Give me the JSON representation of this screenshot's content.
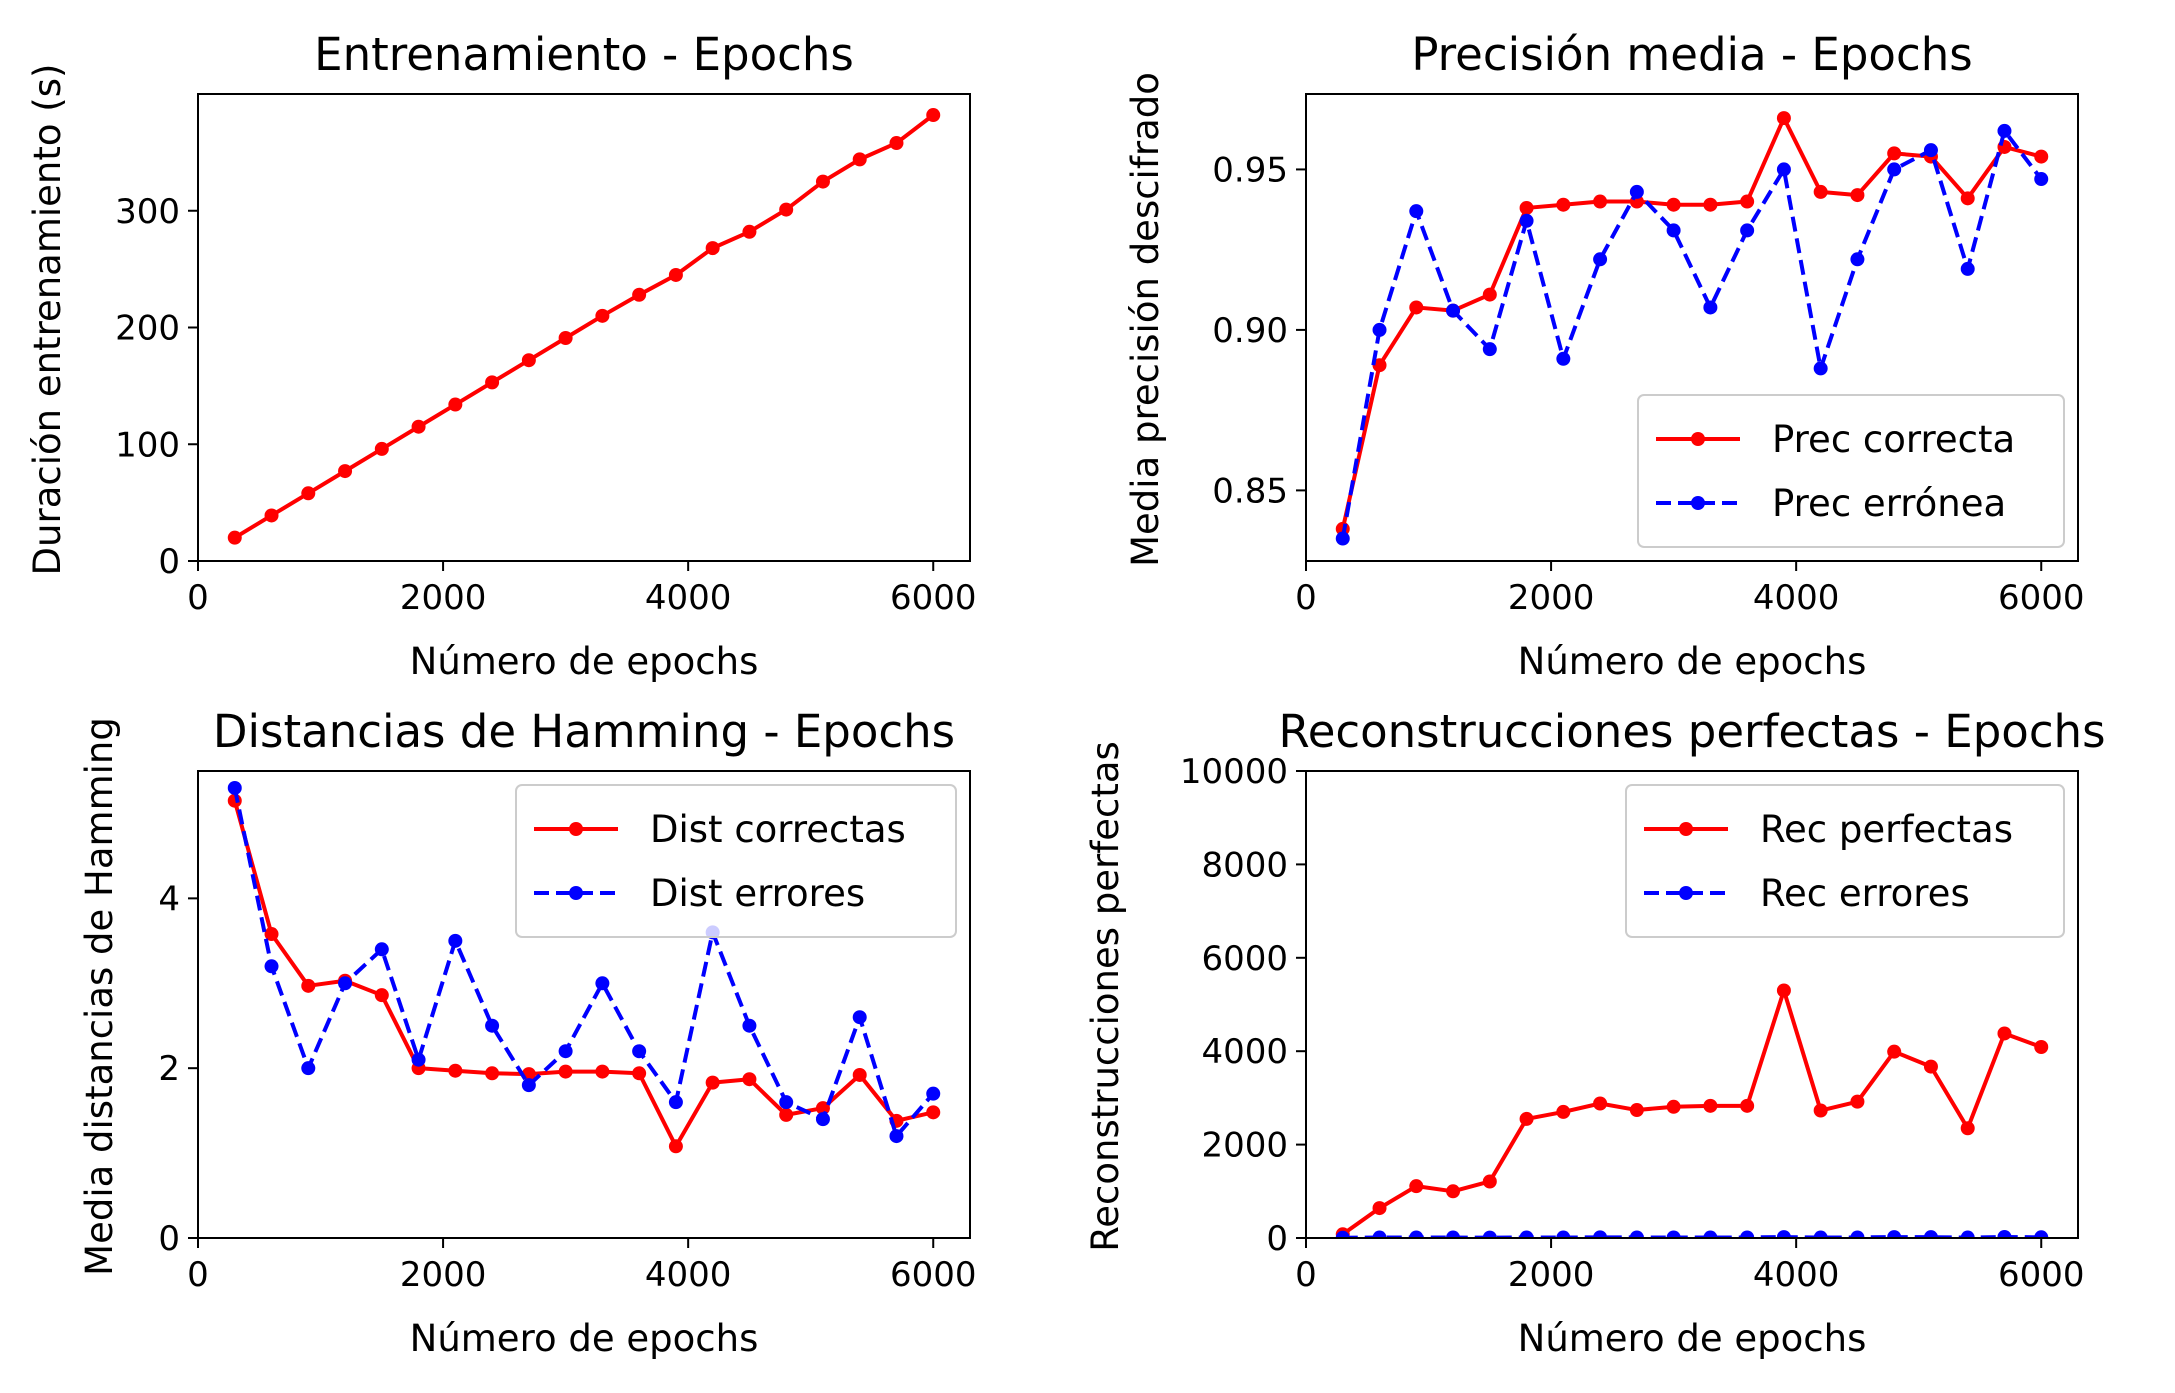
{
  "chart_data": [
    {
      "id": "training",
      "type": "line",
      "title": "Entrenamiento - Epochs",
      "xlabel": "Número de epochs",
      "ylabel": "Duración entrenamiento (s)",
      "xlim": [
        0,
        6300
      ],
      "ylim": [
        0,
        400
      ],
      "xticks": [
        0,
        2000,
        4000,
        6000
      ],
      "yticks": [
        0,
        100,
        200,
        300
      ],
      "legend": null,
      "series": [
        {
          "name": "",
          "color": "#ff0000",
          "dash": "solid",
          "x": [
            300,
            600,
            900,
            1200,
            1500,
            1800,
            2100,
            2400,
            2700,
            3000,
            3300,
            3600,
            3900,
            4200,
            4500,
            4800,
            5100,
            5400,
            5700,
            6000
          ],
          "y": [
            20,
            39,
            58,
            77,
            96,
            115,
            134,
            153,
            172,
            191,
            210,
            228,
            245,
            268,
            282,
            301,
            325,
            344,
            358,
            382
          ]
        }
      ]
    },
    {
      "id": "precision",
      "type": "line",
      "title": "Precisión media - Epochs",
      "xlabel": "Número de epochs",
      "ylabel": "Media precisión descifrado",
      "xlim": [
        0,
        6300
      ],
      "ylim": [
        0.828,
        0.9735
      ],
      "xticks": [
        0,
        2000,
        4000,
        6000
      ],
      "yticks": [
        0.85,
        0.9,
        0.95
      ],
      "ytick_labels": [
        "0.85",
        "0.90",
        "0.95"
      ],
      "legend": "lower-right",
      "series": [
        {
          "name": "Prec correcta",
          "color": "#ff0000",
          "dash": "solid",
          "x": [
            300,
            600,
            900,
            1200,
            1500,
            1800,
            2100,
            2400,
            2700,
            3000,
            3300,
            3600,
            3900,
            4200,
            4500,
            4800,
            5100,
            5400,
            5700,
            6000
          ],
          "y": [
            0.838,
            0.889,
            0.907,
            0.906,
            0.911,
            0.938,
            0.939,
            0.94,
            0.94,
            0.939,
            0.939,
            0.94,
            0.966,
            0.943,
            0.942,
            0.955,
            0.954,
            0.941,
            0.957,
            0.954
          ]
        },
        {
          "name": "Prec errónea",
          "color": "#0000ff",
          "dash": "dashed",
          "x": [
            300,
            600,
            900,
            1200,
            1500,
            1800,
            2100,
            2400,
            2700,
            3000,
            3300,
            3600,
            3900,
            4200,
            4500,
            4800,
            5100,
            5400,
            5700,
            6000
          ],
          "y": [
            0.835,
            0.9,
            0.937,
            0.906,
            0.894,
            0.934,
            0.891,
            0.922,
            0.943,
            0.931,
            0.907,
            0.931,
            0.95,
            0.888,
            0.922,
            0.95,
            0.956,
            0.919,
            0.962,
            0.947
          ]
        }
      ]
    },
    {
      "id": "hamming",
      "type": "line",
      "title": "Distancias de Hamming - Epochs",
      "xlabel": "Número de epochs",
      "ylabel": "Media distancias de Hamming",
      "xlim": [
        0,
        6300
      ],
      "ylim": [
        0,
        5.5
      ],
      "xticks": [
        0,
        2000,
        4000,
        6000
      ],
      "yticks": [
        0,
        2,
        4
      ],
      "legend": "upper-right",
      "series": [
        {
          "name": "Dist correctas",
          "color": "#ff0000",
          "dash": "solid",
          "x": [
            300,
            600,
            900,
            1200,
            1500,
            1800,
            2100,
            2400,
            2700,
            3000,
            3300,
            3600,
            3900,
            4200,
            4500,
            4800,
            5100,
            5400,
            5700,
            6000
          ],
          "y": [
            5.15,
            3.58,
            2.97,
            3.03,
            2.86,
            2.0,
            1.97,
            1.94,
            1.93,
            1.96,
            1.96,
            1.94,
            1.08,
            1.83,
            1.87,
            1.45,
            1.53,
            1.92,
            1.38,
            1.48
          ]
        },
        {
          "name": "Dist errores",
          "color": "#0000ff",
          "dash": "dashed",
          "x": [
            300,
            600,
            900,
            1200,
            1500,
            1800,
            2100,
            2400,
            2700,
            3000,
            3300,
            3600,
            3900,
            4200,
            4500,
            4800,
            5100,
            5400,
            5700,
            6000
          ],
          "y": [
            5.3,
            3.2,
            2.0,
            3.0,
            3.4,
            2.1,
            3.5,
            2.5,
            1.8,
            2.2,
            3.0,
            2.2,
            1.6,
            3.6,
            2.5,
            1.6,
            1.4,
            2.6,
            1.2,
            1.7
          ]
        }
      ]
    },
    {
      "id": "reconstructions",
      "type": "line",
      "title": "Reconstrucciones perfectas - Epochs",
      "xlabel": "Número de epochs",
      "ylabel": "Reconstrucciones perfectas",
      "xlim": [
        0,
        6300
      ],
      "ylim": [
        0,
        10000
      ],
      "xticks": [
        0,
        2000,
        4000,
        6000
      ],
      "yticks": [
        0,
        2000,
        4000,
        6000,
        8000,
        10000
      ],
      "legend": "upper-right",
      "series": [
        {
          "name": "Rec perfectas",
          "color": "#ff0000",
          "dash": "solid",
          "x": [
            300,
            600,
            900,
            1200,
            1500,
            1800,
            2100,
            2400,
            2700,
            3000,
            3300,
            3600,
            3900,
            4200,
            4500,
            4800,
            5100,
            5400,
            5700,
            6000
          ],
          "y": [
            80,
            640,
            1110,
            1000,
            1210,
            2550,
            2700,
            2880,
            2740,
            2810,
            2830,
            2830,
            5300,
            2730,
            2920,
            3990,
            3670,
            2350,
            4380,
            4090
          ]
        },
        {
          "name": "Rec errores",
          "color": "#0000ff",
          "dash": "dashed",
          "x": [
            300,
            600,
            900,
            1200,
            1500,
            1800,
            2100,
            2400,
            2700,
            3000,
            3300,
            3600,
            3900,
            4200,
            4500,
            4800,
            5100,
            5400,
            5700,
            6000
          ],
          "y": [
            5,
            10,
            12,
            10,
            8,
            12,
            10,
            14,
            12,
            12,
            10,
            12,
            20,
            10,
            12,
            20,
            18,
            10,
            22,
            15
          ]
        }
      ]
    }
  ]
}
